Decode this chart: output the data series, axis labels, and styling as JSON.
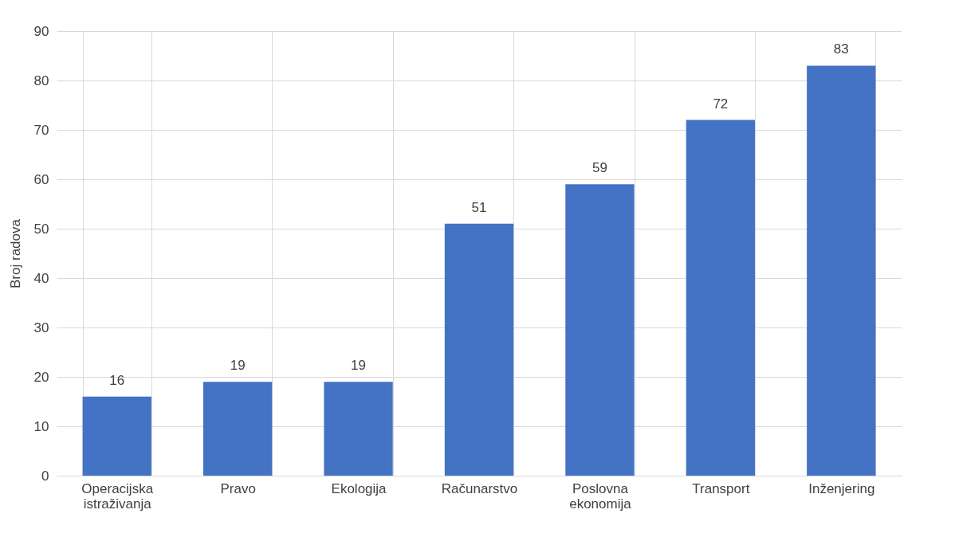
{
  "chart_data": {
    "type": "bar",
    "ylabel": "Broj radova",
    "categories": [
      "Operacijska istraživanja",
      "Pravo",
      "Ekologija",
      "Računarstvo",
      "Poslovna ekonomija",
      "Transport",
      "Inženjering"
    ],
    "values": [
      16,
      19,
      19,
      51,
      59,
      72,
      83
    ],
    "color": "#4472c4",
    "ylim": [
      0,
      90
    ],
    "yticks": [
      0,
      10,
      20,
      30,
      40,
      50,
      60,
      70,
      80,
      90
    ],
    "grid": true,
    "data_labels": true
  }
}
